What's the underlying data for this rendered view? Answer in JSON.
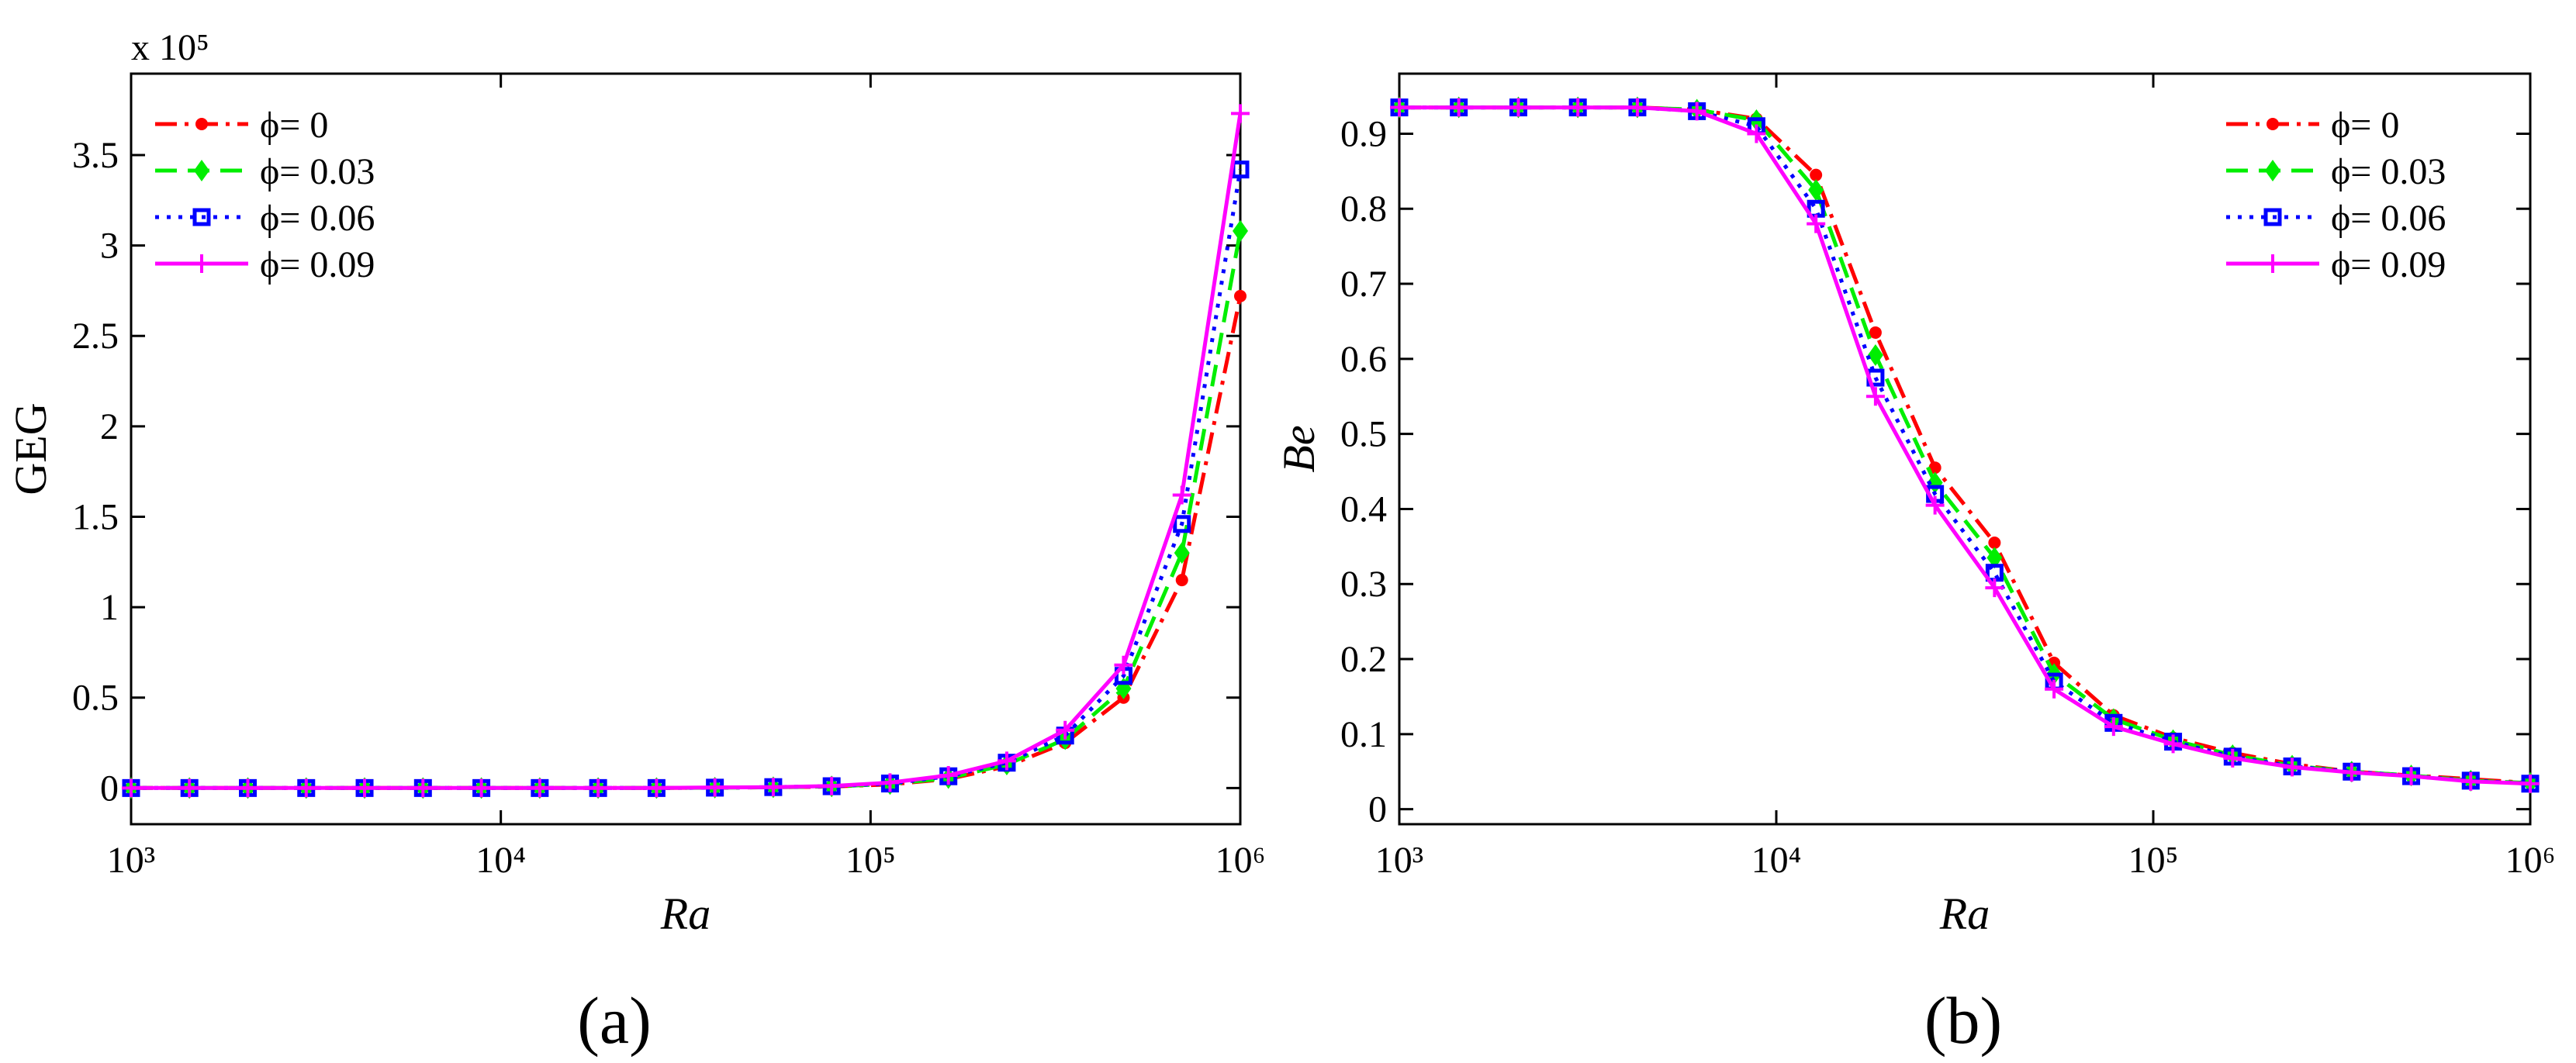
{
  "chart_data": [
    {
      "type": "line",
      "caption": "(a)",
      "ylabel": "GEG",
      "xlabel": "Ra",
      "multiplier": "x 10⁵",
      "xlog": true,
      "legend": "upper left",
      "x": [
        1000,
        1438,
        2069,
        2976,
        4281,
        6158,
        8859,
        12743,
        18330,
        26367,
        37927,
        54556,
        78476,
        112884,
        162378,
        233572,
        335982,
        483293,
        695193,
        1000000
      ],
      "xlim": [
        1000,
        1000000
      ],
      "xticks": [
        {
          "value": 1000,
          "label": "10³"
        },
        {
          "value": 10000,
          "label": "10⁴"
        },
        {
          "value": 100000,
          "label": "10⁵"
        },
        {
          "value": 1000000,
          "label": "10⁶"
        }
      ],
      "ylim": [
        -0.2,
        3.95
      ],
      "yticks": [
        0,
        0.5,
        1,
        1.5,
        2,
        2.5,
        3,
        3.5
      ],
      "series": [
        {
          "name": "ϕ= 0",
          "color": "#ff0000",
          "dash": "dashdot",
          "marker": "circle",
          "values": [
            0,
            0,
            0,
            0,
            0,
            0,
            0,
            0,
            0,
            0,
            0.002,
            0.004,
            0.008,
            0.02,
            0.05,
            0.12,
            0.25,
            0.5,
            1.15,
            2.72
          ]
        },
        {
          "name": "ϕ= 0.03",
          "color": "#00ee00",
          "dash": "dashed",
          "marker": "diamond",
          "values": [
            0,
            0,
            0,
            0,
            0,
            0,
            0,
            0,
            0,
            0,
            0.002,
            0.004,
            0.009,
            0.022,
            0.055,
            0.13,
            0.27,
            0.55,
            1.3,
            3.08
          ]
        },
        {
          "name": "ϕ= 0.06",
          "color": "#0000ff",
          "dash": "dotted",
          "marker": "square",
          "values": [
            0,
            0,
            0,
            0,
            0,
            0,
            0,
            0,
            0,
            0,
            0.002,
            0.005,
            0.01,
            0.025,
            0.065,
            0.14,
            0.29,
            0.62,
            1.46,
            3.42
          ]
        },
        {
          "name": "ϕ= 0.09",
          "color": "#ff00ff",
          "dash": "solid",
          "marker": "plus",
          "values": [
            0,
            0,
            0,
            0,
            0,
            0,
            0,
            0,
            0,
            0,
            0.003,
            0.005,
            0.011,
            0.03,
            0.07,
            0.15,
            0.32,
            0.68,
            1.62,
            3.73
          ]
        }
      ]
    },
    {
      "type": "line",
      "caption": "(b)",
      "ylabel": "Be",
      "xlabel": "Ra",
      "xlog": true,
      "legend": "upper right",
      "x": [
        1000,
        1438,
        2069,
        2976,
        4281,
        6158,
        8859,
        12743,
        18330,
        26367,
        37927,
        54556,
        78476,
        112884,
        162378,
        233572,
        335982,
        483293,
        695193,
        1000000
      ],
      "xlim": [
        1000,
        1000000
      ],
      "xticks": [
        {
          "value": 1000,
          "label": "10³"
        },
        {
          "value": 10000,
          "label": "10⁴"
        },
        {
          "value": 100000,
          "label": "10⁵"
        },
        {
          "value": 1000000,
          "label": "10⁶"
        }
      ],
      "ylim": [
        -0.02,
        0.98
      ],
      "yticks": [
        0,
        0.1,
        0.2,
        0.3,
        0.4,
        0.5,
        0.6,
        0.7,
        0.8,
        0.9
      ],
      "series": [
        {
          "name": "ϕ= 0",
          "color": "#ff0000",
          "dash": "dashdot",
          "marker": "circle",
          "values": [
            0.935,
            0.935,
            0.935,
            0.935,
            0.935,
            0.932,
            0.92,
            0.845,
            0.635,
            0.455,
            0.355,
            0.195,
            0.125,
            0.095,
            0.075,
            0.06,
            0.05,
            0.045,
            0.04,
            0.035
          ]
        },
        {
          "name": "ϕ= 0.03",
          "color": "#00ee00",
          "dash": "dashed",
          "marker": "diamond",
          "values": [
            0.935,
            0.935,
            0.935,
            0.935,
            0.935,
            0.932,
            0.918,
            0.825,
            0.605,
            0.435,
            0.335,
            0.18,
            0.12,
            0.092,
            0.072,
            0.058,
            0.05,
            0.045,
            0.038,
            0.035
          ]
        },
        {
          "name": "ϕ= 0.06",
          "color": "#0000ff",
          "dash": "dotted",
          "marker": "square",
          "values": [
            0.935,
            0.935,
            0.935,
            0.935,
            0.935,
            0.93,
            0.91,
            0.8,
            0.575,
            0.42,
            0.315,
            0.17,
            0.115,
            0.09,
            0.07,
            0.057,
            0.05,
            0.044,
            0.038,
            0.034
          ]
        },
        {
          "name": "ϕ= 0.09",
          "color": "#ff00ff",
          "dash": "solid",
          "marker": "plus",
          "values": [
            0.935,
            0.935,
            0.935,
            0.935,
            0.935,
            0.93,
            0.9,
            0.78,
            0.55,
            0.405,
            0.295,
            0.16,
            0.11,
            0.087,
            0.068,
            0.056,
            0.049,
            0.044,
            0.037,
            0.034
          ]
        }
      ]
    }
  ]
}
